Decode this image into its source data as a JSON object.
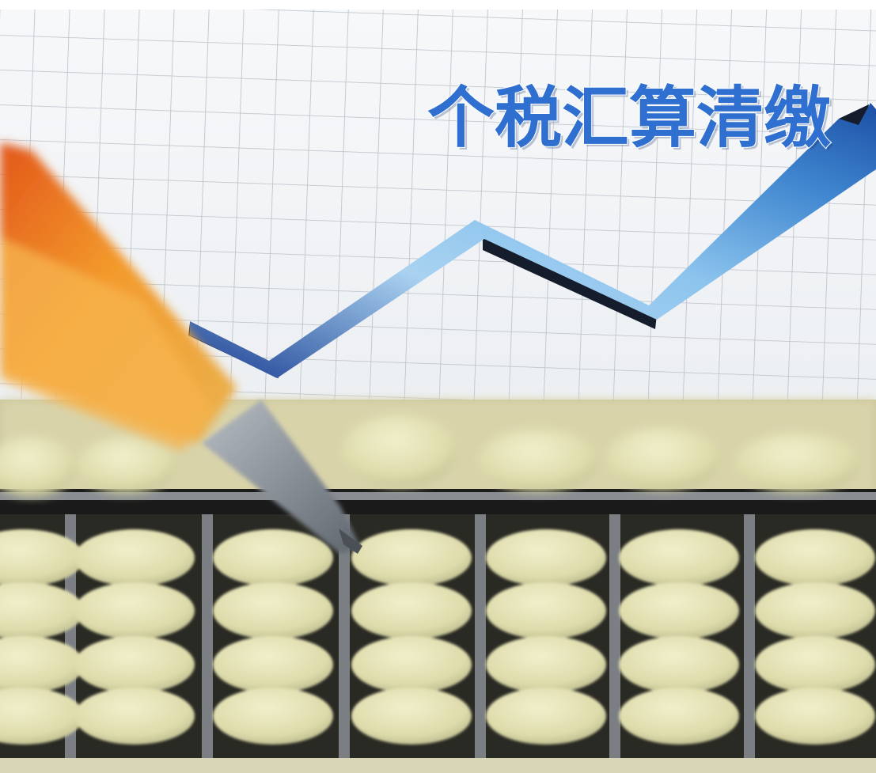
{
  "headline": {
    "text": "个税汇算清缴",
    "color": "#2f6fd0",
    "shadow_color": "#0d2c66"
  },
  "colors": {
    "paper": "#f4f6f8",
    "grid": "#b9c0c9",
    "arrow_light": "#a9d2f0",
    "arrow_dark": "#1c3f93",
    "arrow_edge": "#151c2b",
    "pen_orange": "#f08a1e",
    "pen_tip": "#8e959d",
    "abacus_frame": "#1a1a1a",
    "bead": "#e3e2b6",
    "bead_shade": "#b9b98d"
  },
  "icons": {
    "pen": "pen-icon",
    "arrow": "trend-arrow-icon",
    "abacus": "abacus-icon"
  }
}
